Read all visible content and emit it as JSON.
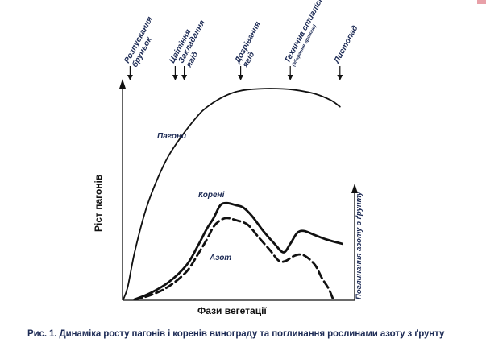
{
  "chart_data": {
    "type": "line",
    "xlabel": "Фази вегетації",
    "ylabel": "Ріст пагонів",
    "right_label": "Поглинання азоту з ґрунту",
    "caption": "Рис. 1. Динаміка росту пагонів і коренів винограду та поглинання рослинами азоту з ґрунту",
    "phases": [
      {
        "label_lines": [
          "Розпускання",
          "бруньок"
        ],
        "x": 0.03
      },
      {
        "label_lines": [
          "Цвітіння"
        ],
        "x": 0.23
      },
      {
        "label_lines": [
          "Закладання",
          "ягід"
        ],
        "x": 0.27
      },
      {
        "label_lines": [
          "Дозрівання",
          "ягід"
        ],
        "x": 0.52
      },
      {
        "label_lines": [
          "Технічна стиглість"
        ],
        "note": "(збирання врожаю)",
        "x": 0.74
      },
      {
        "label_lines": [
          "Листопад"
        ],
        "x": 0.96
      }
    ],
    "series": [
      {
        "name": "Пагони",
        "style": "solid-thin",
        "color": "#111111",
        "points": [
          [
            0.0,
            0.0
          ],
          [
            0.02,
            0.06
          ],
          [
            0.05,
            0.22
          ],
          [
            0.1,
            0.42
          ],
          [
            0.15,
            0.56
          ],
          [
            0.2,
            0.67
          ],
          [
            0.25,
            0.75
          ],
          [
            0.3,
            0.82
          ],
          [
            0.35,
            0.88
          ],
          [
            0.4,
            0.92
          ],
          [
            0.45,
            0.95
          ],
          [
            0.5,
            0.97
          ],
          [
            0.55,
            0.98
          ],
          [
            0.65,
            0.985
          ],
          [
            0.75,
            0.98
          ],
          [
            0.85,
            0.96
          ],
          [
            0.92,
            0.93
          ],
          [
            0.96,
            0.9
          ]
        ]
      },
      {
        "name": "Корені",
        "style": "solid-thick",
        "color": "#111111",
        "points": [
          [
            0.05,
            0.0
          ],
          [
            0.12,
            0.03
          ],
          [
            0.2,
            0.08
          ],
          [
            0.28,
            0.16
          ],
          [
            0.33,
            0.25
          ],
          [
            0.37,
            0.33
          ],
          [
            0.4,
            0.38
          ],
          [
            0.43,
            0.44
          ],
          [
            0.46,
            0.45
          ],
          [
            0.5,
            0.44
          ],
          [
            0.53,
            0.43
          ],
          [
            0.57,
            0.39
          ],
          [
            0.62,
            0.32
          ],
          [
            0.67,
            0.26
          ],
          [
            0.71,
            0.22
          ],
          [
            0.74,
            0.26
          ],
          [
            0.77,
            0.31
          ],
          [
            0.8,
            0.32
          ],
          [
            0.85,
            0.3
          ],
          [
            0.9,
            0.28
          ],
          [
            0.97,
            0.26
          ]
        ]
      },
      {
        "name": "Азот",
        "style": "dashed-thick",
        "color": "#111111",
        "points": [
          [
            0.05,
            0.0
          ],
          [
            0.12,
            0.02
          ],
          [
            0.2,
            0.06
          ],
          [
            0.28,
            0.13
          ],
          [
            0.33,
            0.21
          ],
          [
            0.37,
            0.28
          ],
          [
            0.4,
            0.34
          ],
          [
            0.43,
            0.37
          ],
          [
            0.46,
            0.38
          ],
          [
            0.5,
            0.37
          ],
          [
            0.55,
            0.35
          ],
          [
            0.6,
            0.29
          ],
          [
            0.65,
            0.23
          ],
          [
            0.69,
            0.18
          ],
          [
            0.72,
            0.18
          ],
          [
            0.75,
            0.2
          ],
          [
            0.78,
            0.21
          ],
          [
            0.81,
            0.2
          ],
          [
            0.85,
            0.16
          ],
          [
            0.88,
            0.1
          ],
          [
            0.91,
            0.05
          ],
          [
            0.93,
            0.0
          ]
        ]
      }
    ],
    "xlim": [
      0,
      1
    ],
    "ylim": [
      0,
      1
    ]
  }
}
